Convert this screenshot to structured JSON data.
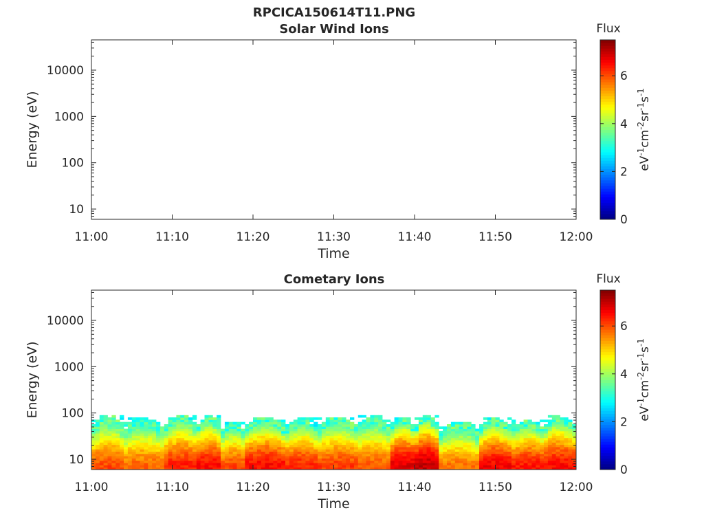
{
  "figure_title": "RPCICA150614T11.PNG",
  "chart_data": [
    {
      "type": "heatmap",
      "title": "Solar Wind Ions",
      "xlabel": "Time",
      "ylabel": "Energy (eV)",
      "x_ticks": [
        "11:00",
        "11:10",
        "11:20",
        "11:30",
        "11:40",
        "11:50",
        "12:00"
      ],
      "x_range": [
        "11:00",
        "12:00"
      ],
      "y_scale": "log",
      "y_ticks": [
        10,
        100,
        1000,
        10000
      ],
      "y_tick_labels": [
        "10",
        "100",
        "1000",
        "10000"
      ],
      "ylim": [
        6,
        45000
      ],
      "colorbar": {
        "title": "Flux",
        "label_parts": [
          "eV",
          "-1",
          "cm",
          "-2",
          "sr",
          "-1",
          "s",
          "-1"
        ],
        "range": [
          0,
          7.5
        ],
        "ticks": [
          "0",
          "2",
          "4",
          "6"
        ],
        "colormap": "jet"
      },
      "segments": []
    },
    {
      "type": "heatmap",
      "title": "Cometary Ions",
      "xlabel": "Time",
      "ylabel": "Energy (eV)",
      "x_ticks": [
        "11:00",
        "11:10",
        "11:20",
        "11:30",
        "11:40",
        "11:50",
        "12:00"
      ],
      "x_range": [
        "11:00",
        "12:00"
      ],
      "y_scale": "log",
      "y_ticks": [
        10,
        100,
        1000,
        10000
      ],
      "y_tick_labels": [
        "10",
        "100",
        "1000",
        "10000"
      ],
      "ylim": [
        6,
        45000
      ],
      "colorbar": {
        "title": "Flux",
        "label_parts": [
          "eV",
          "-1",
          "cm",
          "-2",
          "sr",
          "-1",
          "s",
          "-1"
        ],
        "range": [
          0,
          7.5
        ],
        "ticks": [
          "0",
          "2",
          "4",
          "6"
        ],
        "colormap": "jet"
      },
      "segments": [
        {
          "start_min": 0,
          "end_min": 4,
          "top_ev": 80,
          "peak": 6.3
        },
        {
          "start_min": 4,
          "end_min": 9,
          "top_ev": 70,
          "peak": 6.1
        },
        {
          "start_min": 9,
          "end_min": 13,
          "top_ev": 80,
          "peak": 6.6
        },
        {
          "start_min": 13,
          "end_min": 16,
          "top_ev": 80,
          "peak": 6.8
        },
        {
          "start_min": 16,
          "end_min": 19,
          "top_ev": 60,
          "peak": 6.3
        },
        {
          "start_min": 19,
          "end_min": 24,
          "top_ev": 75,
          "peak": 6.8
        },
        {
          "start_min": 24,
          "end_min": 28,
          "top_ev": 70,
          "peak": 6.6
        },
        {
          "start_min": 28,
          "end_min": 33,
          "top_ev": 75,
          "peak": 6.4
        },
        {
          "start_min": 33,
          "end_min": 37,
          "top_ev": 80,
          "peak": 6.2
        },
        {
          "start_min": 37,
          "end_min": 40,
          "top_ev": 75,
          "peak": 7.1
        },
        {
          "start_min": 40,
          "end_min": 43,
          "top_ev": 80,
          "peak": 7.3
        },
        {
          "start_min": 43,
          "end_min": 48,
          "top_ev": 60,
          "peak": 6.0
        },
        {
          "start_min": 48,
          "end_min": 52,
          "top_ev": 75,
          "peak": 6.9
        },
        {
          "start_min": 52,
          "end_min": 56,
          "top_ev": 65,
          "peak": 6.7
        },
        {
          "start_min": 56,
          "end_min": 60,
          "top_ev": 80,
          "peak": 6.8
        }
      ]
    }
  ]
}
